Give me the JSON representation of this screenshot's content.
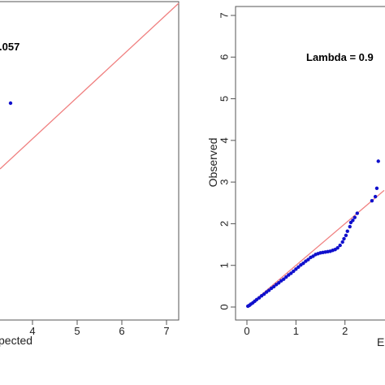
{
  "chart_data": [
    {
      "type": "scatter",
      "panel": "left",
      "annotation": ".057",
      "xlabel": "pected",
      "ylabel": "",
      "x_ticks": [
        "4",
        "5",
        "6",
        "7"
      ],
      "y_ticks": [],
      "reference_line": "y = x",
      "colors": {
        "points": "#1010cc",
        "reference_line": "#f08080",
        "frame": "#555555"
      },
      "series": [
        {
          "x": [
            3.5
          ],
          "y": [
            4.8
          ]
        }
      ]
    },
    {
      "type": "scatter",
      "panel": "right",
      "annotation": "Lambda = 0.9",
      "xlabel": "E",
      "ylabel": "Observed",
      "xlim": [
        0,
        2.8
      ],
      "ylim": [
        0,
        7
      ],
      "x_ticks": [
        "0",
        "1",
        "2"
      ],
      "y_ticks": [
        "0",
        "1",
        "2",
        "3",
        "4",
        "5",
        "6",
        "7"
      ],
      "reference_line": "y = x",
      "colors": {
        "points": "#1010cc",
        "reference_line": "#f08080",
        "frame": "#555555"
      },
      "series": [
        {
          "x": [
            0.02,
            0.05,
            0.08,
            0.12,
            0.16,
            0.2,
            0.25,
            0.3,
            0.35,
            0.4,
            0.45,
            0.5,
            0.55,
            0.6,
            0.65,
            0.7,
            0.75,
            0.8,
            0.85,
            0.9,
            0.95,
            1.0,
            1.05,
            1.1,
            1.15,
            1.2,
            1.25,
            1.3,
            1.35,
            1.4,
            1.45,
            1.5,
            1.55,
            1.6,
            1.65,
            1.7,
            1.75,
            1.8,
            1.85,
            1.9,
            1.95,
            1.98,
            2.02,
            2.05,
            2.1,
            2.12,
            2.16,
            2.2,
            2.25,
            2.55,
            2.62,
            2.65,
            2.68
          ],
          "y": [
            0.02,
            0.04,
            0.07,
            0.1,
            0.14,
            0.18,
            0.22,
            0.27,
            0.31,
            0.36,
            0.4,
            0.45,
            0.49,
            0.54,
            0.58,
            0.63,
            0.67,
            0.72,
            0.77,
            0.81,
            0.86,
            0.91,
            0.96,
            1.01,
            1.05,
            1.1,
            1.14,
            1.19,
            1.22,
            1.26,
            1.28,
            1.3,
            1.31,
            1.32,
            1.33,
            1.34,
            1.36,
            1.38,
            1.42,
            1.48,
            1.56,
            1.64,
            1.72,
            1.82,
            1.93,
            2.03,
            2.08,
            2.15,
            2.25,
            2.55,
            2.65,
            2.85,
            3.5
          ]
        }
      ]
    }
  ]
}
